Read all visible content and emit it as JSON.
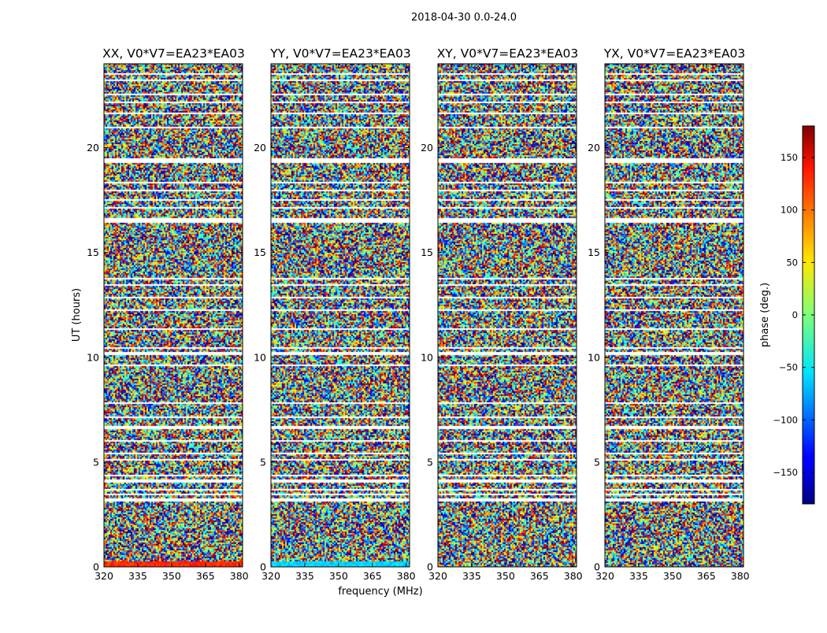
{
  "figure_title": "2018-04-30 0.0-24.0",
  "colorbar": {
    "label": "phase (deg.)",
    "ticks": [
      150,
      100,
      50,
      0,
      -50,
      -100,
      -150
    ],
    "tick_labels": [
      "150",
      "100",
      "50",
      "0",
      "−50",
      "−100",
      "−150"
    ],
    "range": [
      -180,
      180
    ],
    "colormap": "jet"
  },
  "chart_data": [
    {
      "type": "heatmap",
      "title": "XX, V0*V7=EA23*EA03",
      "xlabel": "",
      "ylabel": "UT (hours)",
      "xlim": [
        320,
        381.5
      ],
      "ylim": [
        0,
        24
      ],
      "xticks": [
        320,
        335,
        350,
        365,
        380
      ],
      "yticks": [
        0,
        5,
        10,
        15,
        20
      ],
      "value_range_deg": [
        -180,
        180
      ],
      "bottom_band_phase_deg": 120
    },
    {
      "type": "heatmap",
      "title": "YY, V0*V7=EA23*EA03",
      "xlabel": "frequency (MHz)",
      "ylabel": "",
      "xlim": [
        320,
        381.5
      ],
      "ylim": [
        0,
        24
      ],
      "xticks": [
        320,
        335,
        350,
        365,
        380
      ],
      "yticks": [
        0,
        5,
        10,
        15,
        20
      ],
      "value_range_deg": [
        -180,
        180
      ],
      "bottom_band_phase_deg": -60
    },
    {
      "type": "heatmap",
      "title": "XY, V0*V7=EA23*EA03",
      "xlabel": "",
      "ylabel": "",
      "xlim": [
        320,
        381.5
      ],
      "ylim": [
        0,
        24
      ],
      "xticks": [
        320,
        335,
        350,
        365,
        380
      ],
      "yticks": [
        0,
        5,
        10,
        15,
        20
      ],
      "value_range_deg": [
        -180,
        180
      ]
    },
    {
      "type": "heatmap",
      "title": "YX, V0*V7=EA23*EA03",
      "xlabel": "",
      "ylabel": "",
      "xlim": [
        320,
        381.5
      ],
      "ylim": [
        0,
        24
      ],
      "xticks": [
        320,
        335,
        350,
        365,
        380
      ],
      "yticks": [
        0,
        5,
        10,
        15,
        20
      ],
      "value_range_deg": [
        -180,
        180
      ]
    }
  ],
  "flagged_time_ranges_hours": [
    [
      3.1,
      3.3
    ],
    [
      3.45,
      3.52
    ],
    [
      3.65,
      3.72
    ],
    [
      4.05,
      4.15
    ],
    [
      4.3,
      4.38
    ],
    [
      5.05,
      5.15
    ],
    [
      5.4,
      5.46
    ],
    [
      6.0,
      6.06
    ],
    [
      6.6,
      6.7
    ],
    [
      7.1,
      7.16
    ],
    [
      7.8,
      7.88
    ],
    [
      8.5,
      8.56
    ],
    [
      9.6,
      9.66
    ],
    [
      10.1,
      10.22
    ],
    [
      10.4,
      10.46
    ],
    [
      11.3,
      11.36
    ],
    [
      12.2,
      12.26
    ],
    [
      12.8,
      12.86
    ],
    [
      13.4,
      13.5
    ],
    [
      13.7,
      13.76
    ],
    [
      16.45,
      16.65
    ],
    [
      17.1,
      17.16
    ],
    [
      17.5,
      17.56
    ],
    [
      17.9,
      17.96
    ],
    [
      18.3,
      18.36
    ],
    [
      19.3,
      19.5
    ],
    [
      20.9,
      20.96
    ],
    [
      21.6,
      21.66
    ],
    [
      22.1,
      22.16
    ],
    [
      22.5,
      22.56
    ],
    [
      23.2,
      23.26
    ],
    [
      23.5,
      23.56
    ]
  ]
}
